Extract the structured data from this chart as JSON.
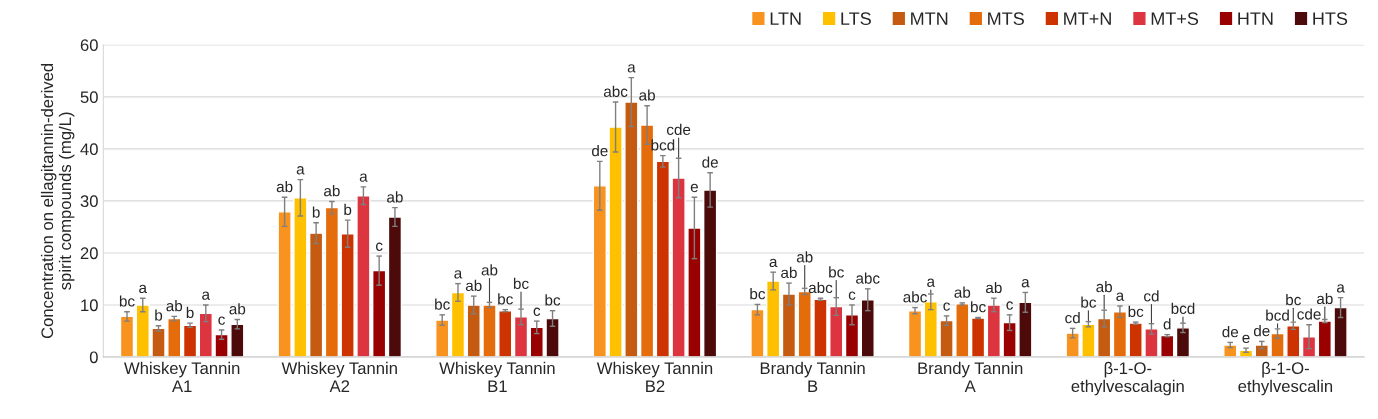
{
  "chart_data": {
    "type": "bar",
    "ylabel": "Concentration on ellagitannin-derived\nspirit compounds (mg/L)",
    "categories": [
      "Whiskey Tannin\nA1",
      "Whiskey Tannin\nA2",
      "Whiskey Tannin\nB1",
      "Whiskey Tannin\nB2",
      "Brandy Tannin\nB",
      "Brandy Tannin\nA",
      "β-1-O-\nethylvescalagin",
      "β-1-O-\nethylvescalin"
    ],
    "series": [
      {
        "name": "LTN",
        "color": "#f7931e",
        "values": [
          7.8,
          27.9,
          7.1,
          32.9,
          9.1,
          8.9,
          4.6,
          2.3
        ],
        "errors": [
          0.9,
          2.8,
          1.0,
          4.7,
          1.0,
          0.6,
          0.9,
          0.5
        ],
        "value_labels": [
          "bc",
          "ab",
          "bc",
          "de",
          "bc",
          "abc",
          "cd",
          "de"
        ]
      },
      {
        "name": "LTS",
        "color": "#ffc000",
        "values": [
          10.0,
          30.6,
          12.4,
          44.2,
          14.6,
          10.6,
          6.3,
          1.3
        ],
        "errors": [
          1.3,
          3.5,
          1.7,
          4.8,
          1.7,
          1.5,
          0.5,
          0.4
        ],
        "value_labels": [
          "a",
          "a",
          "a",
          "abc",
          "a",
          "a",
          "bc",
          "e"
        ]
      },
      {
        "name": "MTN",
        "color": "#c55a11",
        "values": [
          5.5,
          23.8,
          10.0,
          49.0,
          12.1,
          7.0,
          7.4,
          2.3
        ],
        "errors": [
          0.5,
          2.0,
          1.7,
          4.7,
          2.1,
          0.9,
          1.6,
          0.7
        ],
        "value_labels": [
          "b",
          "b",
          "ab",
          "a",
          "ab",
          "c",
          "ab",
          "de"
        ]
      },
      {
        "name": "MTS",
        "color": "#e46c0a",
        "values": [
          7.4,
          28.7,
          10.0,
          44.6,
          12.6,
          10.2,
          8.7,
          4.5
        ],
        "errors": [
          0.4,
          1.2,
          0.5,
          3.7,
          0.6,
          0.2,
          1.1,
          0.9
        ],
        "value_labels": [
          "ab",
          "ab",
          "ab",
          "ab",
          "ab",
          "ab",
          "a",
          "bcd"
        ]
      },
      {
        "name": "MT+N",
        "color": "#cc3300",
        "values": [
          6.1,
          23.7,
          8.9,
          37.6,
          11.1,
          7.5,
          6.5,
          6.0
        ],
        "errors": [
          0.4,
          2.6,
          0.2,
          1.1,
          0.2,
          0.1,
          0.2,
          0.7
        ],
        "value_labels": [
          "b",
          "b",
          "bc",
          "bcd",
          "abc",
          "bc",
          "bc",
          "bc"
        ]
      },
      {
        "name": "MT+S",
        "color": "#dc3540",
        "values": [
          8.4,
          31.0,
          7.7,
          34.4,
          9.7,
          10.0,
          5.4,
          3.9
        ],
        "errors": [
          1.6,
          1.7,
          1.5,
          3.8,
          1.7,
          1.3,
          1.0,
          2.3
        ],
        "value_labels": [
          "a",
          "a",
          "bc",
          "cde",
          "bc",
          "ab",
          "cd",
          "cde"
        ]
      },
      {
        "name": "HTN",
        "color": "#990000",
        "values": [
          4.3,
          16.6,
          5.7,
          24.8,
          8.1,
          6.6,
          4.1,
          6.9
        ],
        "errors": [
          0.9,
          2.8,
          1.2,
          5.9,
          1.9,
          1.5,
          0.2,
          0.3
        ],
        "value_labels": [
          "c",
          "c",
          "c",
          "e",
          "c",
          "c",
          "d",
          "ab"
        ]
      },
      {
        "name": "HTS",
        "color": "#4d0a0a",
        "values": [
          6.3,
          26.9,
          7.4,
          32.1,
          11.0,
          10.5,
          5.6,
          9.5
        ],
        "errors": [
          0.9,
          1.8,
          1.5,
          3.3,
          2.1,
          1.9,
          0.9,
          1.9
        ],
        "value_labels": [
          "ab",
          "ab",
          "bc",
          "de",
          "abc",
          "a",
          "bcd",
          "a"
        ]
      }
    ],
    "ylim": [
      0,
      60
    ],
    "yticks": [
      0,
      10,
      20,
      30,
      40,
      50,
      60
    ],
    "grid": "y",
    "legend": "top right"
  }
}
